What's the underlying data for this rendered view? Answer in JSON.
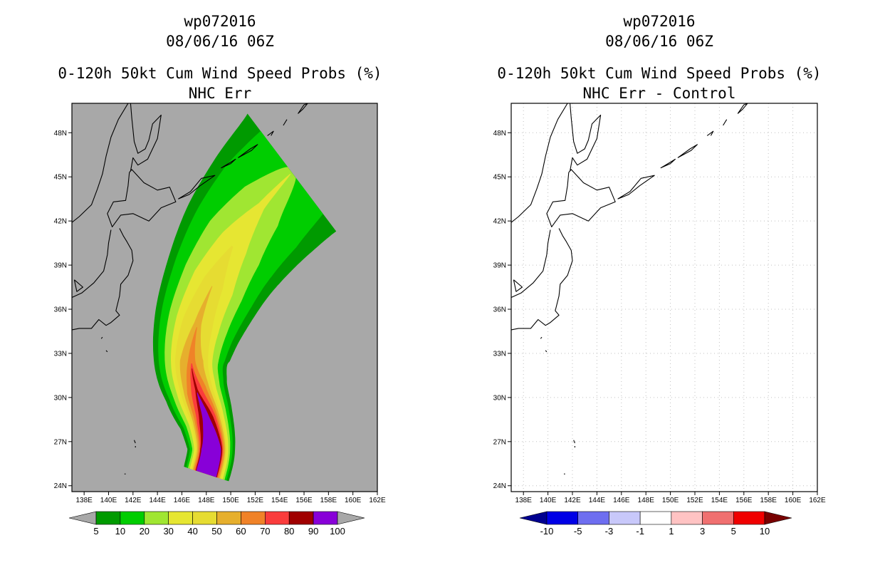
{
  "left_panel": {
    "title_id": "wp072016",
    "title_date": "08/06/16 06Z",
    "title_main": "0-120h 50kt Cum Wind Speed Probs (%)",
    "title_sub": "NHC Err"
  },
  "right_panel": {
    "title_id": "wp072016",
    "title_date": "08/06/16 06Z",
    "title_main": "0-120h 50kt Cum Wind Speed Probs (%)",
    "title_sub": "NHC Err - Control"
  },
  "colors": {
    "background_gray": "#a8a8a8",
    "track_core": "#8800d8"
  },
  "chart_data": [
    {
      "type": "heatmap",
      "name": "cumulative wind speed probability",
      "title": "0-120h 50kt Cum Wind Speed Probs (%)",
      "subtitle": "NHC Err",
      "storm": "wp072016",
      "valid": "08/06/16 06Z",
      "units": "%",
      "x_axis": {
        "label": "longitude",
        "range": [
          137,
          162
        ],
        "ticks": [
          138,
          140,
          142,
          144,
          146,
          148,
          150,
          152,
          154,
          156,
          158,
          160,
          162
        ],
        "tick_labels": [
          "138E",
          "140E",
          "142E",
          "144E",
          "146E",
          "148E",
          "150E",
          "152E",
          "154E",
          "156E",
          "158E",
          "160E",
          "162E"
        ]
      },
      "y_axis": {
        "label": "latitude",
        "range": [
          23.6,
          50
        ],
        "ticks": [
          24,
          27,
          30,
          33,
          36,
          39,
          42,
          45,
          48
        ],
        "tick_labels": [
          "24N",
          "27N",
          "30N",
          "33N",
          "36N",
          "39N",
          "42N",
          "45N",
          "48N"
        ]
      },
      "levels": [
        5,
        10,
        20,
        30,
        40,
        50,
        60,
        70,
        80,
        90,
        100
      ],
      "level_colors": [
        "#009a00",
        "#00cd00",
        "#a0e632",
        "#e6e632",
        "#e6dc32",
        "#e6af2d",
        "#f08228",
        "#fa3c3c",
        "#a00000",
        "#8800d8"
      ],
      "track_centerline": [
        [
          148.0,
          24.8
        ],
        [
          148.4,
          26.5
        ],
        [
          148.0,
          28.5
        ],
        [
          147.2,
          30.5
        ],
        [
          146.8,
          32.5
        ],
        [
          147.3,
          35
        ],
        [
          148.6,
          37.8
        ],
        [
          150.3,
          40.5
        ],
        [
          152.5,
          43
        ],
        [
          155,
          45.3
        ]
      ],
      "contours": [
        {
          "level": 5,
          "centerline_halfwidth_deg": [
            1.9,
            1.95,
            2.2,
            2.6,
            3.1,
            3.6,
            4.1,
            4.6,
            5.0,
            5.4
          ]
        },
        {
          "level": 10,
          "centerline_halfwidth_deg": [
            1.7,
            1.75,
            1.95,
            2.3,
            2.7,
            3.1,
            3.5,
            3.8,
            4.0,
            3.8
          ]
        },
        {
          "level": 20,
          "centerline_halfwidth_deg": [
            1.55,
            1.55,
            1.7,
            1.95,
            2.2,
            2.45,
            2.6,
            2.5,
            1.9,
            0.5
          ]
        },
        {
          "level": 30,
          "centerline_halfwidth_deg": [
            1.4,
            1.4,
            1.45,
            1.6,
            1.7,
            1.8,
            1.75,
            1.2,
            0.3,
            0
          ]
        },
        {
          "level": 40,
          "centerline_halfwidth_deg": [
            1.25,
            1.25,
            1.25,
            1.3,
            1.35,
            1.25,
            0.85,
            0,
            0,
            0
          ]
        },
        {
          "level": 50,
          "centerline_halfwidth_deg": [
            1.15,
            1.15,
            1.1,
            1.05,
            0.95,
            0.3,
            0,
            0,
            0,
            0
          ]
        },
        {
          "level": 60,
          "centerline_halfwidth_deg": [
            1.05,
            1.05,
            0.95,
            0.8,
            0.3,
            0,
            0,
            0,
            0,
            0
          ]
        },
        {
          "level": 70,
          "centerline_halfwidth_deg": [
            0.95,
            0.95,
            0.8,
            0.45,
            0,
            0,
            0,
            0,
            0,
            0
          ]
        },
        {
          "level": 80,
          "centerline_halfwidth_deg": [
            0.9,
            0.9,
            0.6,
            0.1,
            0,
            0,
            0,
            0,
            0,
            0
          ]
        },
        {
          "level": 90,
          "centerline_halfwidth_deg": [
            0.85,
            0.8,
            0.3,
            0,
            0,
            0,
            0,
            0,
            0,
            0
          ]
        }
      ],
      "colorbar": {
        "labels": [
          "5",
          "10",
          "20",
          "30",
          "40",
          "50",
          "60",
          "70",
          "80",
          "90",
          "100"
        ],
        "colors": [
          "#009a00",
          "#00cd00",
          "#a0e632",
          "#e6e632",
          "#e6dc32",
          "#e6af2d",
          "#f08228",
          "#fa3c3c",
          "#a00000",
          "#8800d8"
        ],
        "under_color": "#a8a8a8",
        "over_color": "#a8a8a8"
      }
    },
    {
      "type": "heatmap",
      "name": "probability difference",
      "title": "0-120h 50kt Cum Wind Speed Probs (%)",
      "subtitle": "NHC Err - Control",
      "storm": "wp072016",
      "valid": "08/06/16 06Z",
      "units": "%",
      "x_axis": {
        "label": "longitude",
        "range": [
          137,
          162
        ],
        "ticks": [
          138,
          140,
          142,
          144,
          146,
          148,
          150,
          152,
          154,
          156,
          158,
          160,
          162
        ],
        "tick_labels": [
          "138E",
          "140E",
          "142E",
          "144E",
          "146E",
          "148E",
          "150E",
          "152E",
          "154E",
          "156E",
          "158E",
          "160E",
          "162E"
        ]
      },
      "y_axis": {
        "label": "latitude",
        "range": [
          23.6,
          50
        ],
        "ticks": [
          24,
          27,
          30,
          33,
          36,
          39,
          42,
          45,
          48
        ],
        "tick_labels": [
          "24N",
          "27N",
          "30N",
          "33N",
          "36N",
          "39N",
          "42N",
          "45N",
          "48N"
        ]
      },
      "grid": true,
      "field_values": "all between -1 and 1 (no shaded difference)",
      "colorbar": {
        "labels": [
          "-10",
          "-5",
          "-3",
          "-1",
          "1",
          "3",
          "5",
          "10"
        ],
        "colors": [
          "#0000e6",
          "#6e6ef0",
          "#c8c8fa",
          "#ffffff",
          "#ffc3c3",
          "#f07070",
          "#f00000"
        ],
        "under_color": "#000090",
        "over_color": "#780000"
      }
    }
  ]
}
